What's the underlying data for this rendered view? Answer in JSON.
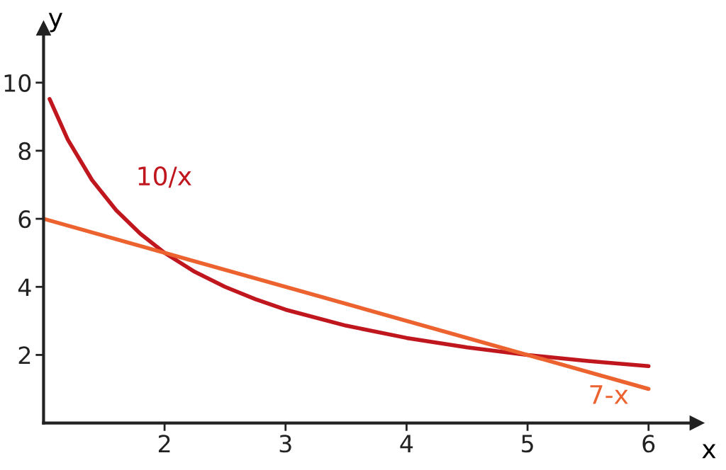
{
  "chart_data": {
    "type": "line",
    "xlabel": "x",
    "ylabel": "y",
    "xlim": [
      1,
      6.4
    ],
    "ylim": [
      0,
      11.6
    ],
    "xticks": [
      2,
      3,
      4,
      5,
      6
    ],
    "yticks": [
      2,
      4,
      6,
      8,
      10
    ],
    "grid": false,
    "legend": false,
    "marker": "none",
    "line_style": "solid",
    "series": [
      {
        "name": "10/x",
        "color": "#c0161e",
        "x": [
          1.05,
          1.2,
          1.4,
          1.6,
          1.8,
          2,
          2.25,
          2.5,
          2.75,
          3,
          3.5,
          4,
          4.5,
          5,
          5.5,
          6
        ],
        "values": [
          9.52,
          8.33,
          7.14,
          6.25,
          5.56,
          5,
          4.44,
          4,
          3.64,
          3.33,
          2.86,
          2.5,
          2.22,
          2,
          1.82,
          1.67
        ]
      },
      {
        "name": "7-x",
        "color": "#ec6330",
        "x": [
          1,
          6
        ],
        "values": [
          6,
          1
        ]
      }
    ]
  }
}
